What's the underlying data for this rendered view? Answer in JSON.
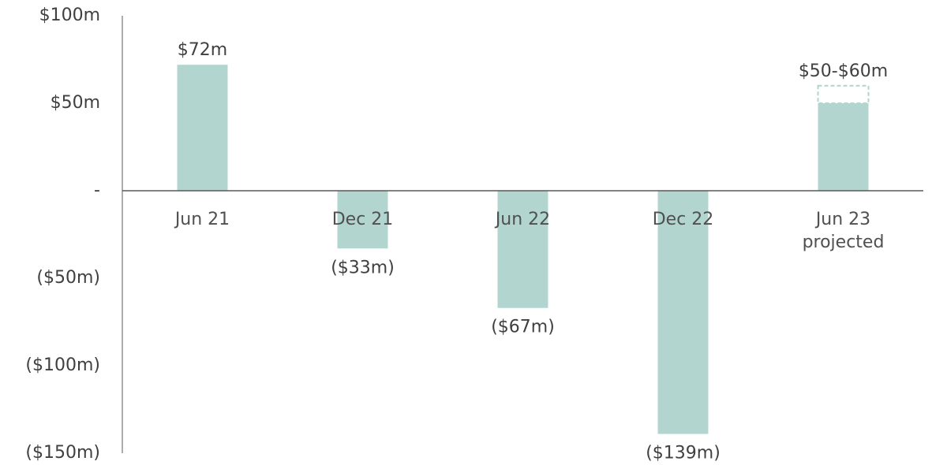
{
  "chart_data": {
    "type": "bar",
    "categories": [
      "Jun 21",
      "Dec 21",
      "Jun 22",
      "Dec 22",
      "Jun 23\nprojected"
    ],
    "values": [
      72,
      -33,
      -67,
      -139,
      50
    ],
    "upper_values": [
      null,
      null,
      null,
      null,
      60
    ],
    "value_labels": [
      "$72m",
      "($33m)",
      "($67m)",
      "($139m)",
      "$50-$60m"
    ],
    "color": "#b2d5d0",
    "ylim": [
      -150,
      100
    ],
    "yticks": [
      {
        "value": -150,
        "label": "($150m)"
      },
      {
        "value": -100,
        "label": "($100m)"
      },
      {
        "value": -50,
        "label": "($50m)"
      },
      {
        "value": 0,
        "label": "-"
      },
      {
        "value": 50,
        "label": "$50m"
      },
      {
        "value": 100,
        "label": "$100m"
      }
    ],
    "grid": false
  }
}
